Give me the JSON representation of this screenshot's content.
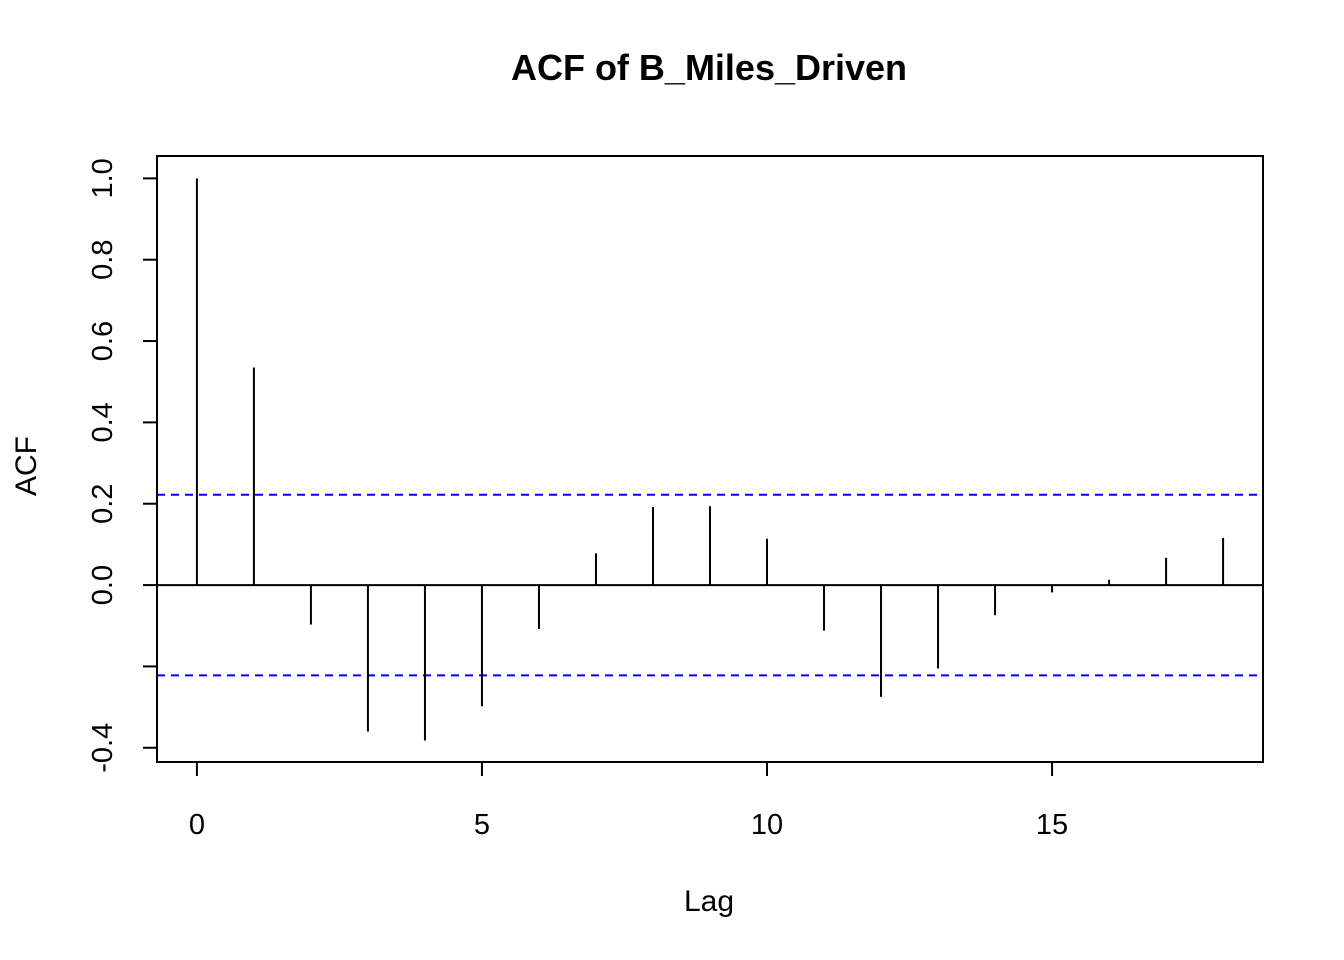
{
  "chart_data": {
    "type": "bar",
    "title": "ACF of B_Miles_Driven",
    "xlabel": "Lag",
    "ylabel": "ACF",
    "xlim": [
      -0.7,
      18.7
    ],
    "ylim": [
      -0.435,
      1.055
    ],
    "x_ticks": [
      0,
      5,
      10,
      15
    ],
    "x_tick_labels": [
      "0",
      "5",
      "10",
      "15"
    ],
    "y_ticks": [
      -0.4,
      -0.2,
      0.0,
      0.2,
      0.4,
      0.6,
      0.8,
      1.0
    ],
    "y_tick_labels": [
      "-0.4",
      "",
      "0.0",
      "0.2",
      "0.4",
      "0.6",
      "0.8",
      "1.0"
    ],
    "x": [
      0,
      1,
      2,
      3,
      4,
      5,
      6,
      7,
      8,
      9,
      10,
      11,
      12,
      13,
      14,
      15,
      16,
      17,
      18
    ],
    "values": [
      1.0,
      0.535,
      -0.097,
      -0.36,
      -0.382,
      -0.298,
      -0.108,
      0.078,
      0.192,
      0.194,
      0.114,
      -0.112,
      -0.275,
      -0.205,
      -0.074,
      -0.018,
      0.013,
      0.067,
      0.116
    ],
    "confidence_band": 0.222,
    "colors": {
      "bars": "#000000",
      "ci_line": "#0000FF",
      "zero_line": "#000000"
    },
    "grid": false,
    "legend": "none"
  }
}
